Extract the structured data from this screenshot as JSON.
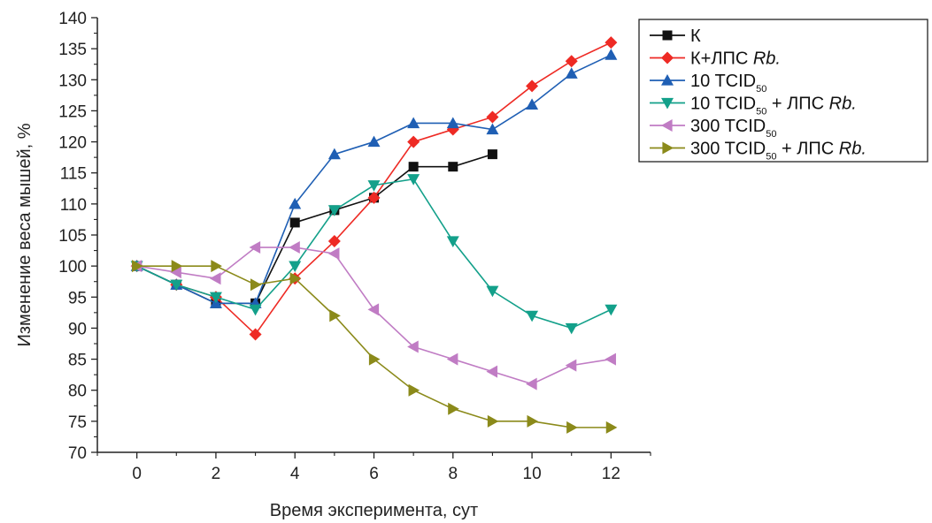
{
  "chart_data": {
    "type": "line",
    "title": "",
    "xlabel": "Время эксперимента, сут",
    "ylabel": "Изменение веса мышей, %",
    "xlim": [
      -1,
      13
    ],
    "ylim": [
      70,
      140
    ],
    "x_ticks": [
      0,
      2,
      4,
      6,
      8,
      10,
      12
    ],
    "y_ticks": [
      70,
      75,
      80,
      85,
      90,
      95,
      100,
      105,
      110,
      115,
      120,
      125,
      130,
      135,
      140
    ],
    "x": [
      0,
      1,
      2,
      3,
      4,
      5,
      6,
      7,
      8,
      9,
      10,
      11,
      12
    ],
    "legend_position": "top-right-outside",
    "grid": false,
    "series": [
      {
        "name_parts": [
          {
            "text": "К"
          }
        ],
        "color": "#111111",
        "marker": "square",
        "values": [
          100,
          97,
          94,
          94,
          107,
          109,
          111,
          116,
          116,
          118,
          null,
          null,
          null
        ]
      },
      {
        "name_parts": [
          {
            "text": "К+ЛПС "
          },
          {
            "text": "Rb.",
            "italic": true
          }
        ],
        "color": "#ee2a24",
        "marker": "diamond",
        "values": [
          100,
          97,
          95,
          89,
          98,
          104,
          111,
          120,
          122,
          124,
          129,
          133,
          136
        ]
      },
      {
        "name_parts": [
          {
            "text": "10 TCID"
          },
          {
            "text": "50",
            "sub": true
          }
        ],
        "color": "#1f5fb4",
        "marker": "triangle-up",
        "values": [
          100,
          97,
          94,
          94,
          110,
          118,
          120,
          123,
          123,
          122,
          126,
          131,
          134
        ]
      },
      {
        "name_parts": [
          {
            "text": "10 TCID"
          },
          {
            "text": "50",
            "sub": true
          },
          {
            "text": " + ЛПС "
          },
          {
            "text": "Rb.",
            "italic": true
          }
        ],
        "color": "#13a08a",
        "marker": "triangle-down",
        "values": [
          100,
          97,
          95,
          93,
          100,
          109,
          113,
          114,
          104,
          96,
          92,
          90,
          93
        ]
      },
      {
        "name_parts": [
          {
            "text": "300 TCID"
          },
          {
            "text": "50",
            "sub": true
          }
        ],
        "color": "#c07cc4",
        "marker": "triangle-left",
        "values": [
          100,
          99,
          98,
          103,
          103,
          102,
          93,
          87,
          85,
          83,
          81,
          84,
          85
        ]
      },
      {
        "name_parts": [
          {
            "text": "300 TCID"
          },
          {
            "text": "50",
            "sub": true
          },
          {
            "text": " + ЛПС "
          },
          {
            "text": "Rb.",
            "italic": true
          }
        ],
        "color": "#8b8a1a",
        "marker": "triangle-right",
        "values": [
          100,
          100,
          100,
          97,
          98,
          92,
          85,
          80,
          77,
          75,
          75,
          74,
          74
        ]
      }
    ]
  }
}
